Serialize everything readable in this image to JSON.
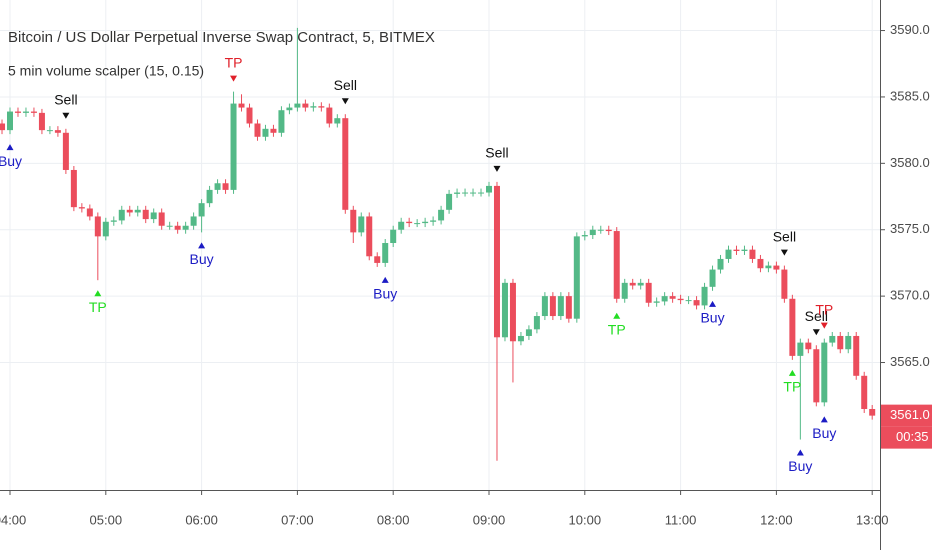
{
  "chart_data": {
    "type": "candlestick",
    "title": "Bitcoin / US Dollar Perpetual Inverse Swap Contract, 5, BITMEX",
    "subtitle": "5 min volume scalper (15, 0.15)",
    "x": [
      "03:55",
      "04:00",
      "04:05",
      "04:10",
      "04:15",
      "04:20",
      "04:25",
      "04:30",
      "04:35",
      "04:40",
      "04:45",
      "04:50",
      "04:55",
      "05:00",
      "05:05",
      "05:10",
      "05:15",
      "05:20",
      "05:25",
      "05:30",
      "05:35",
      "05:40",
      "05:45",
      "05:50",
      "05:55",
      "06:00",
      "06:05",
      "06:10",
      "06:15",
      "06:20",
      "06:25",
      "06:30",
      "06:35",
      "06:40",
      "06:45",
      "06:50",
      "06:55",
      "07:00",
      "07:05",
      "07:10",
      "07:15",
      "07:20",
      "07:25",
      "07:30",
      "07:35",
      "07:40",
      "07:45",
      "07:50",
      "07:55",
      "08:00",
      "08:05",
      "08:10",
      "08:15",
      "08:20",
      "08:25",
      "08:30",
      "08:35",
      "08:40",
      "08:45",
      "08:50",
      "08:55",
      "09:00",
      "09:05",
      "09:10",
      "09:15",
      "09:20",
      "09:25",
      "09:30",
      "09:35",
      "09:40",
      "09:45",
      "09:50",
      "09:55",
      "10:00",
      "10:05",
      "10:10",
      "10:15",
      "10:20",
      "10:25",
      "10:30",
      "10:35",
      "10:40",
      "10:45",
      "10:50",
      "10:55",
      "11:00",
      "11:05",
      "11:10",
      "11:15",
      "11:20",
      "11:25",
      "11:30",
      "11:35",
      "11:40",
      "11:45",
      "11:50",
      "11:55",
      "12:00",
      "12:05",
      "12:10",
      "12:15",
      "12:20",
      "12:25",
      "12:30",
      "12:35",
      "12:40",
      "12:45",
      "12:50",
      "12:55",
      "13:00"
    ],
    "open": [
      3583.0,
      3582.5,
      3583.9,
      3583.8,
      3583.9,
      3583.8,
      3582.5,
      3582.5,
      3582.3,
      3579.5,
      3576.7,
      3576.6,
      3576.0,
      3574.5,
      3575.6,
      3575.7,
      3576.5,
      3576.3,
      3576.5,
      3575.8,
      3576.3,
      3575.3,
      3575.3,
      3575.0,
      3575.3,
      3576.0,
      3577.0,
      3578.0,
      3578.5,
      3578.0,
      3584.5,
      3584.2,
      3583.0,
      3582.0,
      3582.6,
      3582.3,
      3584.0,
      3584.2,
      3584.5,
      3584.2,
      3584.3,
      3584.2,
      3583.0,
      3583.4,
      3576.5,
      3574.8,
      3576.0,
      3573.0,
      3572.5,
      3574.0,
      3575.0,
      3575.6,
      3575.5,
      3575.5,
      3575.6,
      3575.7,
      3576.5,
      3577.7,
      3577.8,
      3577.8,
      3577.8,
      3577.8,
      3578.3,
      3566.9,
      3571.0,
      3566.6,
      3567.0,
      3567.5,
      3568.5,
      3570.0,
      3568.5,
      3570.0,
      3568.3,
      3574.5,
      3574.6,
      3575.0,
      3575.0,
      3574.9,
      3569.8,
      3571.0,
      3570.8,
      3571.0,
      3569.5,
      3569.6,
      3570.0,
      3569.8,
      3569.7,
      3569.7,
      3569.3,
      3570.7,
      3572.0,
      3572.8,
      3573.5,
      3573.4,
      3573.5,
      3572.8,
      3572.1,
      3572.3,
      3572.0,
      3569.8,
      3565.5,
      3566.5,
      3566.0,
      3562.0,
      3566.5,
      3567.0,
      3566.0,
      3567.0,
      3564.0,
      3561.5
    ],
    "high": [
      3583.3,
      3584.2,
      3584.2,
      3584.2,
      3584.2,
      3584.1,
      3582.8,
      3582.8,
      3582.6,
      3579.8,
      3577.0,
      3576.9,
      3576.3,
      3575.9,
      3576.0,
      3576.8,
      3576.8,
      3576.8,
      3576.8,
      3576.6,
      3576.6,
      3575.6,
      3575.6,
      3575.6,
      3576.3,
      3577.3,
      3578.3,
      3578.8,
      3578.8,
      3585.4,
      3585.2,
      3584.5,
      3583.3,
      3582.9,
      3582.9,
      3584.3,
      3584.5,
      3590.2,
      3584.8,
      3584.6,
      3584.6,
      3584.5,
      3583.7,
      3583.7,
      3576.8,
      3576.3,
      3576.3,
      3573.3,
      3574.3,
      3575.3,
      3575.9,
      3575.9,
      3575.8,
      3575.9,
      3576.0,
      3576.8,
      3578.0,
      3578.1,
      3578.1,
      3578.1,
      3578.1,
      3578.6,
      3578.6,
      3571.3,
      3571.3,
      3567.3,
      3567.8,
      3568.8,
      3570.3,
      3570.3,
      3570.3,
      3570.3,
      3574.8,
      3574.9,
      3575.3,
      3575.3,
      3575.3,
      3575.2,
      3571.3,
      3571.3,
      3571.3,
      3571.3,
      3569.9,
      3570.3,
      3570.3,
      3570.1,
      3570.0,
      3570.0,
      3571.0,
      3572.3,
      3573.1,
      3573.8,
      3573.8,
      3573.8,
      3573.8,
      3573.1,
      3572.6,
      3572.6,
      3572.3,
      3570.1,
      3566.8,
      3566.8,
      3566.3,
      3566.8,
      3567.3,
      3567.3,
      3567.3,
      3567.3,
      3564.3,
      3561.8
    ],
    "low": [
      3582.2,
      3582.2,
      3583.5,
      3583.5,
      3583.5,
      3582.2,
      3582.2,
      3582.0,
      3579.2,
      3576.4,
      3576.3,
      3575.7,
      3571.2,
      3574.2,
      3575.3,
      3575.4,
      3576.0,
      3576.0,
      3575.5,
      3575.5,
      3575.0,
      3575.0,
      3574.7,
      3574.7,
      3575.0,
      3574.8,
      3576.7,
      3577.7,
      3577.7,
      3577.7,
      3583.9,
      3582.7,
      3581.7,
      3581.7,
      3582.0,
      3582.0,
      3583.7,
      3583.9,
      3583.9,
      3583.9,
      3583.9,
      3582.7,
      3582.7,
      3576.2,
      3574.0,
      3574.5,
      3572.7,
      3572.2,
      3572.2,
      3573.7,
      3574.7,
      3575.2,
      3575.2,
      3575.2,
      3575.3,
      3575.4,
      3576.2,
      3577.4,
      3577.5,
      3577.5,
      3577.5,
      3577.5,
      3557.6,
      3566.6,
      3563.5,
      3566.3,
      3566.7,
      3567.2,
      3568.2,
      3568.2,
      3568.2,
      3568.0,
      3568.0,
      3574.2,
      3574.3,
      3574.7,
      3574.6,
      3569.5,
      3569.5,
      3570.5,
      3570.5,
      3569.2,
      3569.2,
      3569.3,
      3569.5,
      3569.4,
      3569.4,
      3569.0,
      3569.0,
      3570.4,
      3571.7,
      3572.5,
      3573.1,
      3573.1,
      3572.5,
      3571.8,
      3571.8,
      3571.7,
      3569.5,
      3565.2,
      3559.2,
      3565.7,
      3561.7,
      3561.7,
      3566.2,
      3565.7,
      3565.7,
      3563.7,
      3561.2,
      3560.7
    ],
    "close": [
      3582.5,
      3583.9,
      3583.8,
      3583.9,
      3583.8,
      3582.5,
      3582.5,
      3582.3,
      3579.5,
      3576.7,
      3576.6,
      3576.0,
      3574.5,
      3575.6,
      3575.7,
      3576.5,
      3576.3,
      3576.5,
      3575.8,
      3576.3,
      3575.3,
      3575.3,
      3575.0,
      3575.3,
      3576.0,
      3577.0,
      3578.0,
      3578.5,
      3578.0,
      3584.5,
      3584.2,
      3583.0,
      3582.0,
      3582.6,
      3582.3,
      3584.0,
      3584.2,
      3584.5,
      3584.2,
      3584.3,
      3584.2,
      3583.0,
      3583.4,
      3576.5,
      3574.8,
      3576.0,
      3573.0,
      3572.5,
      3574.0,
      3575.0,
      3575.6,
      3575.5,
      3575.5,
      3575.6,
      3575.7,
      3576.5,
      3577.7,
      3577.8,
      3577.8,
      3577.8,
      3577.8,
      3578.3,
      3566.9,
      3571.0,
      3566.6,
      3567.0,
      3567.5,
      3568.5,
      3570.0,
      3568.5,
      3570.0,
      3568.3,
      3574.5,
      3574.6,
      3575.0,
      3575.0,
      3574.9,
      3569.8,
      3571.0,
      3570.8,
      3571.0,
      3569.5,
      3569.6,
      3570.0,
      3569.8,
      3569.7,
      3569.7,
      3569.3,
      3570.7,
      3572.0,
      3572.8,
      3573.5,
      3573.4,
      3573.5,
      3572.8,
      3572.1,
      3572.3,
      3572.0,
      3569.8,
      3565.5,
      3566.5,
      3566.0,
      3562.0,
      3566.5,
      3567.0,
      3566.0,
      3567.0,
      3564.0,
      3561.5,
      3561.0
    ],
    "up_color": "#53b987",
    "down_color": "#eb4d5c",
    "signals": [
      {
        "label": "Buy",
        "time": "04:00",
        "side": "below",
        "color": "#1c1cc4"
      },
      {
        "label": "Sell",
        "time": "04:35",
        "side": "above",
        "color": "#111111"
      },
      {
        "label": "TP",
        "time": "04:55",
        "side": "below",
        "color": "#22dd22"
      },
      {
        "label": "Buy",
        "time": "06:00",
        "side": "below",
        "color": "#1c1cc4"
      },
      {
        "label": "TP",
        "time": "06:20",
        "side": "above",
        "color": "#e0202a"
      },
      {
        "label": "Sell",
        "time": "07:30",
        "side": "above",
        "color": "#111111"
      },
      {
        "label": "Buy",
        "time": "07:55",
        "side": "below",
        "color": "#1c1cc4"
      },
      {
        "label": "Sell",
        "time": "09:05",
        "side": "above",
        "color": "#111111"
      },
      {
        "label": "TP",
        "time": "10:20",
        "side": "below",
        "color": "#22dd22"
      },
      {
        "label": "Buy",
        "time": "11:20",
        "side": "below",
        "color": "#1c1cc4"
      },
      {
        "label": "Sell",
        "time": "12:05",
        "side": "above",
        "color": "#111111"
      },
      {
        "label": "TP",
        "time": "12:10",
        "side": "below",
        "color": "#22dd22"
      },
      {
        "label": "Buy",
        "time": "12:15",
        "side": "below",
        "color": "#1c1cc4"
      },
      {
        "label": "Sell",
        "time": "12:25",
        "side": "above",
        "color": "#111111"
      },
      {
        "label": "TP",
        "time": "12:30",
        "side": "above",
        "color": "#e0202a"
      },
      {
        "label": "Buy",
        "time": "12:30",
        "side": "below",
        "color": "#1c1cc4"
      }
    ],
    "ylim": [
      3555.4,
      3592.3
    ],
    "yticks": [
      {
        "value": 3565,
        "label": "3565.0"
      },
      {
        "value": 3570,
        "label": "3570.0"
      },
      {
        "value": 3575,
        "label": "3575.0"
      },
      {
        "value": 3580,
        "label": "3580.0"
      },
      {
        "value": 3585,
        "label": "3585.0"
      },
      {
        "value": 3590,
        "label": "3590.0"
      }
    ],
    "xticks": [
      "04:00",
      "05:00",
      "06:00",
      "07:00",
      "08:00",
      "09:00",
      "10:00",
      "11:00",
      "12:00",
      "13:00"
    ],
    "last_price": {
      "value": 3561.0,
      "label": "3561.0"
    },
    "countdown": "00:35",
    "grid": true
  }
}
